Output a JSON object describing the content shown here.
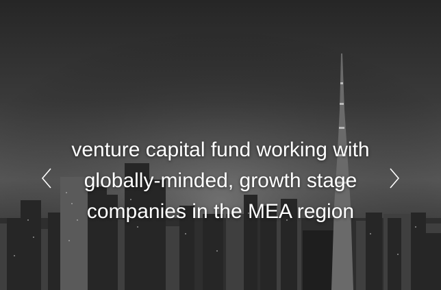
{
  "hero": {
    "caption_lines": [
      "venture capital fund working with",
      "globally-minded, growth stage",
      "companies in the MEA region"
    ]
  },
  "carousel": {
    "prev_icon": "chevron-left-icon",
    "next_icon": "chevron-right-icon"
  },
  "colors": {
    "caption_text": "#ffffff",
    "arrow": "#ffffff"
  }
}
